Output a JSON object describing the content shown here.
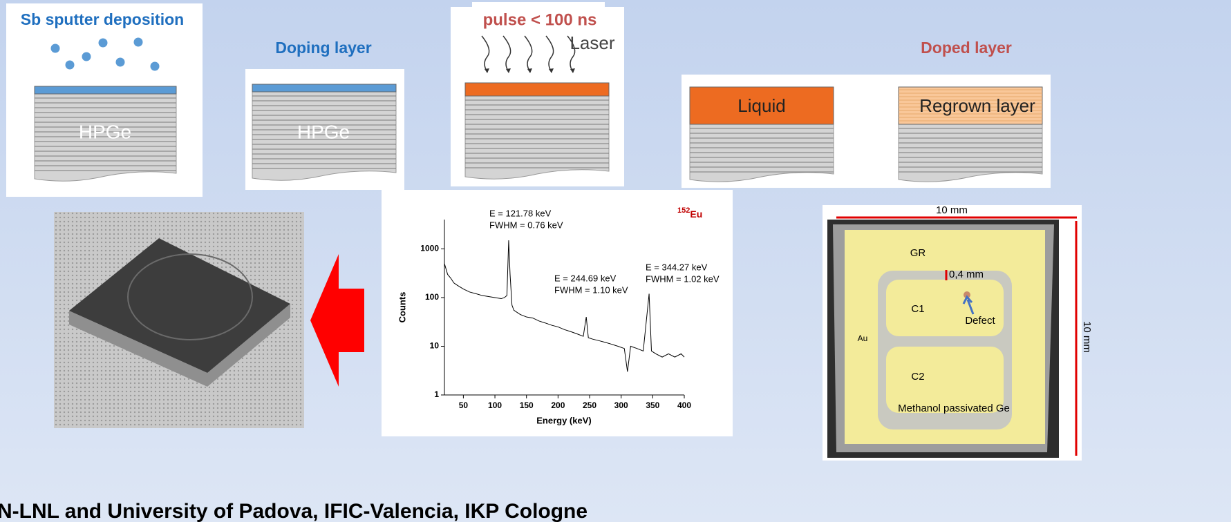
{
  "steps": [
    {
      "title": "Sb sputter deposition",
      "substrate": "HPGe"
    },
    {
      "title": "Doping layer",
      "substrate": "HPGe"
    },
    {
      "title": "pulse < 100 ns",
      "beam": "Laser"
    },
    {
      "title": "Doped layer",
      "left": "Liquid",
      "right": "Regrown layer"
    }
  ],
  "chart_data": {
    "type": "line",
    "ylog": true,
    "isotope": {
      "mass": "152",
      "symbol": "Eu"
    },
    "xlabel": "Energy (keV)",
    "ylabel": "Counts",
    "annotations": [
      [
        "E = 121.78 keV",
        "FWHM = 0.76 keV"
      ],
      [
        "E = 244.69 keV",
        "FWHM = 1.10 keV"
      ],
      [
        "E = 344.27 keV",
        "FWHM = 1.02 keV"
      ]
    ],
    "xlim": [
      20,
      400
    ],
    "ylim": [
      1,
      4000
    ],
    "xticks": [
      50,
      100,
      150,
      200,
      250,
      300,
      350,
      400
    ],
    "yticks": [
      1,
      10,
      100,
      1000
    ],
    "series": [
      {
        "color": "#000000",
        "x": [
          20,
          25,
          30,
          35,
          40,
          50,
          60,
          70,
          80,
          90,
          100,
          110,
          115,
          119,
          121.78,
          124,
          127,
          130,
          140,
          150,
          160,
          170,
          180,
          190,
          200,
          210,
          220,
          230,
          240,
          244.69,
          248,
          255,
          265,
          275,
          285,
          295,
          305,
          310,
          315,
          325,
          335,
          344.27,
          348,
          355,
          365,
          375,
          385,
          395,
          400
        ],
        "values": [
          500,
          300,
          250,
          200,
          180,
          150,
          130,
          120,
          110,
          105,
          100,
          95,
          100,
          110,
          1500,
          300,
          70,
          55,
          45,
          40,
          38,
          33,
          30,
          27,
          25,
          22,
          20,
          18,
          16,
          40,
          15,
          14,
          13,
          12,
          11,
          10,
          9,
          3,
          10,
          9,
          8,
          120,
          8,
          7,
          6,
          7,
          6,
          7,
          6
        ]
      }
    ]
  },
  "sample": {
    "width": "10 mm",
    "height": "10 mm",
    "guard": "GR",
    "gap": "0,4 mm",
    "c1": "C1",
    "defect": "Defect",
    "gold": "Au",
    "c2": "C2",
    "surface": "Methanol passivated Ge"
  },
  "footer": "N-LNL and University of Padova, IFIC-Valencia, IKP Cologne"
}
